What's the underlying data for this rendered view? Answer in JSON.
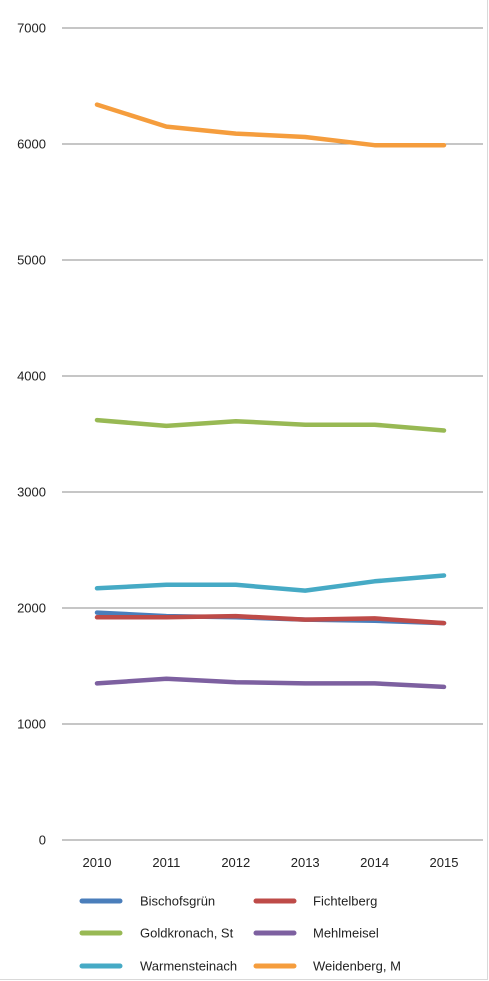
{
  "chart_data": {
    "type": "line",
    "title": "",
    "xlabel": "",
    "ylabel": "",
    "x": [
      2010,
      2011,
      2012,
      2013,
      2014,
      2015
    ],
    "x_tick_labels": [
      "2010",
      "2011",
      "2012",
      "2013",
      "2014",
      "2015"
    ],
    "ylim": [
      0,
      7000
    ],
    "y_ticks": [
      0,
      1000,
      2000,
      3000,
      4000,
      5000,
      6000,
      7000
    ],
    "y_tick_labels": [
      "0",
      "1000",
      "2000",
      "3000",
      "4000",
      "5000",
      "6000",
      "7000"
    ],
    "grid": "horizontal",
    "legend_position": "bottom",
    "series": [
      {
        "name": "Bischofsgrün",
        "color": "#4a7ebb",
        "values": [
          1960,
          1930,
          1920,
          1900,
          1890,
          1870
        ]
      },
      {
        "name": "Fichtelberg",
        "color": "#be4b48",
        "values": [
          1920,
          1920,
          1930,
          1900,
          1910,
          1870
        ]
      },
      {
        "name": "Goldkronach, St",
        "color": "#98b954",
        "values": [
          3620,
          3570,
          3610,
          3580,
          3580,
          3530
        ]
      },
      {
        "name": "Mehlmeisel",
        "color": "#7d60a0",
        "values": [
          1350,
          1390,
          1360,
          1350,
          1350,
          1320
        ]
      },
      {
        "name": "Warmensteinach",
        "color": "#46aac5",
        "values": [
          2170,
          2200,
          2200,
          2150,
          2230,
          2280
        ]
      },
      {
        "name": "Weidenberg, M",
        "color": "#f59d3d",
        "values": [
          6340,
          6150,
          6090,
          6060,
          5990,
          5990
        ]
      }
    ]
  }
}
